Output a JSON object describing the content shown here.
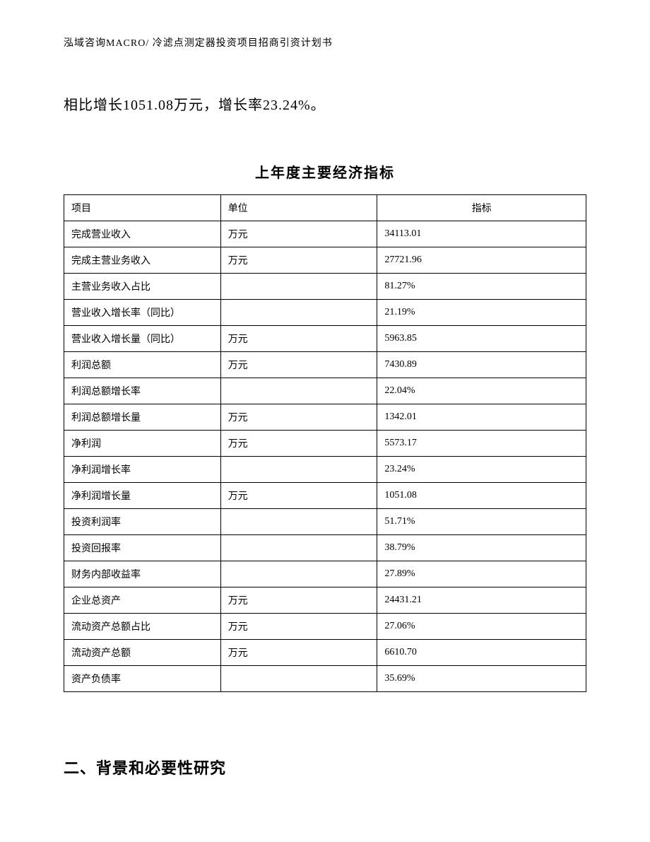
{
  "header": "泓域咨询MACRO/ 冷滤点测定器投资项目招商引资计划书",
  "intro": "相比增长1051.08万元，增长率23.24%。",
  "table_title": "上年度主要经济指标",
  "table": {
    "columns": [
      "项目",
      "单位",
      "指标"
    ],
    "rows": [
      [
        "完成营业收入",
        "万元",
        "34113.01"
      ],
      [
        "完成主营业务收入",
        "万元",
        "27721.96"
      ],
      [
        "主营业务收入占比",
        "",
        "81.27%"
      ],
      [
        "营业收入增长率（同比）",
        "",
        "21.19%"
      ],
      [
        "营业收入增长量（同比）",
        "万元",
        "5963.85"
      ],
      [
        "利润总额",
        "万元",
        "7430.89"
      ],
      [
        "利润总额增长率",
        "",
        "22.04%"
      ],
      [
        "利润总额增长量",
        "万元",
        "1342.01"
      ],
      [
        "净利润",
        "万元",
        "5573.17"
      ],
      [
        "净利润增长率",
        "",
        "23.24%"
      ],
      [
        "净利润增长量",
        "万元",
        "1051.08"
      ],
      [
        "投资利润率",
        "",
        "51.71%"
      ],
      [
        "投资回报率",
        "",
        "38.79%"
      ],
      [
        "财务内部收益率",
        "",
        "27.89%"
      ],
      [
        "企业总资产",
        "万元",
        "24431.21"
      ],
      [
        "流动资产总额占比",
        "万元",
        "27.06%"
      ],
      [
        "流动资产总额",
        "万元",
        "6610.70"
      ],
      [
        "资产负债率",
        "",
        "35.69%"
      ]
    ]
  },
  "section_heading": "二、背景和必要性研究"
}
